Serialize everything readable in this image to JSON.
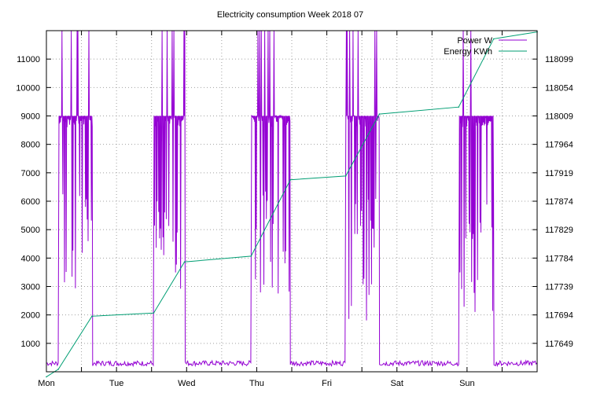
{
  "chart_data": {
    "type": "line",
    "title": "Electricity consumption Week 2018 07",
    "xlabel": "",
    "ylabel": "",
    "y2label": "",
    "x_ticks": [
      "Mon",
      "Tue",
      "Wed",
      "Thu",
      "Fri",
      "Sat",
      "Sun"
    ],
    "x_range_days": [
      0,
      7
    ],
    "ylim": [
      0,
      12000
    ],
    "y_ticks": [
      1000,
      2000,
      3000,
      4000,
      5000,
      6000,
      7000,
      8000,
      9000,
      10000,
      11000
    ],
    "y2lim": [
      117604,
      118144
    ],
    "y2_ticks": [
      117649,
      117694,
      117739,
      117784,
      117829,
      117874,
      117919,
      117964,
      118009,
      118054,
      118099
    ],
    "grid": true,
    "legend_position": "top-right",
    "series": [
      {
        "name": "Power W",
        "axis": "left",
        "color": "#9400d3",
        "style": "oscillating-load-profile",
        "baseline_w": 300,
        "active_periods": [
          {
            "start": 0.17,
            "end": 0.65,
            "high_w": 9000,
            "low_w": 2400,
            "spike_w": 12000
          },
          {
            "start": 1.53,
            "end": 1.97,
            "high_w": 9000,
            "low_w": 2600,
            "spike_w": 12000
          },
          {
            "start": 2.92,
            "end": 3.48,
            "high_w": 9000,
            "low_w": 2400,
            "spike_w": 12000
          },
          {
            "start": 4.27,
            "end": 4.75,
            "high_w": 9000,
            "low_w": 1800,
            "spike_w": 12000
          },
          {
            "start": 5.88,
            "end": 6.38,
            "high_w": 9000,
            "low_w": 2000,
            "spike_w": 12000
          }
        ]
      },
      {
        "name": "Energy KWh",
        "axis": "right",
        "color": "#009e73",
        "points": [
          [
            0.0,
            117596
          ],
          [
            0.17,
            117608
          ],
          [
            0.65,
            117692
          ],
          [
            1.53,
            117697
          ],
          [
            1.97,
            117778
          ],
          [
            2.92,
            117787
          ],
          [
            3.48,
            117908
          ],
          [
            4.27,
            117914
          ],
          [
            4.75,
            118012
          ],
          [
            5.88,
            118023
          ],
          [
            6.38,
            118131
          ],
          [
            7.0,
            118142
          ]
        ]
      }
    ]
  }
}
